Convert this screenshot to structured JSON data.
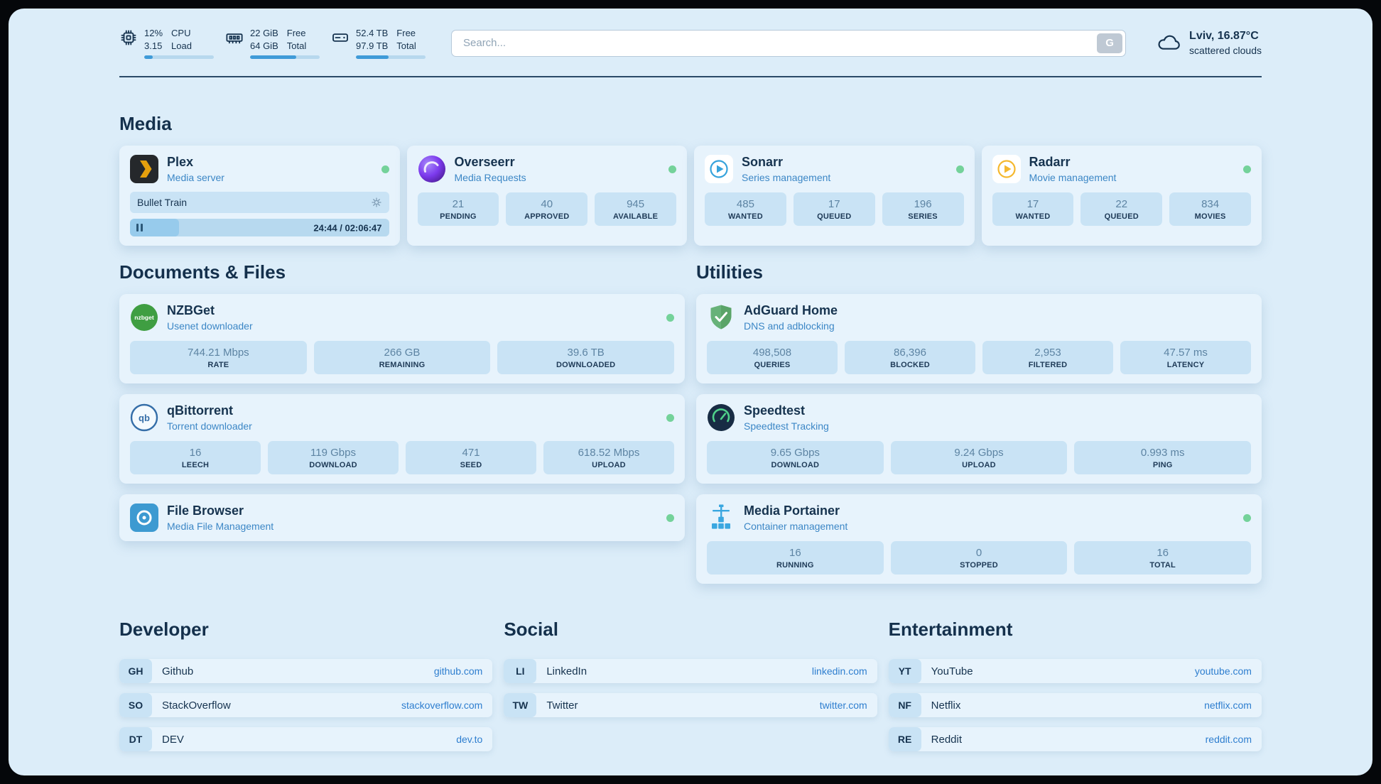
{
  "header": {
    "metrics": [
      {
        "icon": "cpu-icon",
        "values": [
          "12%",
          "3.15"
        ],
        "labels": [
          "CPU",
          "Load"
        ],
        "progress": 12
      },
      {
        "icon": "ram-icon",
        "values": [
          "22 GiB",
          "64 GiB"
        ],
        "labels": [
          "Free",
          "Total"
        ],
        "progress": 66
      },
      {
        "icon": "disk-icon",
        "values": [
          "52.4 TB",
          "97.9 TB"
        ],
        "labels": [
          "Free",
          "Total"
        ],
        "progress": 47
      }
    ],
    "search": {
      "placeholder": "Search...",
      "button_label": "G"
    },
    "weather": {
      "icon": "cloud-icon",
      "location": "Lviv, 16.87°C",
      "condition": "scattered clouds"
    }
  },
  "sections": {
    "media": {
      "title": "Media",
      "plex": {
        "icon": "plex-icon",
        "name": "Plex",
        "subtitle": "Media server",
        "online": true,
        "now_playing": "Bullet Train",
        "elapsed_total": "24:44 / 02:06:47",
        "progress": 19
      },
      "overseerr": {
        "icon": "overseerr-icon",
        "name": "Overseerr",
        "subtitle": "Media Requests",
        "online": true,
        "stats": [
          {
            "value": "21",
            "label": "PENDING"
          },
          {
            "value": "40",
            "label": "APPROVED"
          },
          {
            "value": "945",
            "label": "AVAILABLE"
          }
        ]
      },
      "sonarr": {
        "icon": "sonarr-icon",
        "name": "Sonarr",
        "subtitle": "Series management",
        "online": true,
        "stats": [
          {
            "value": "485",
            "label": "WANTED"
          },
          {
            "value": "17",
            "label": "QUEUED"
          },
          {
            "value": "196",
            "label": "SERIES"
          }
        ]
      },
      "radarr": {
        "icon": "radarr-icon",
        "name": "Radarr",
        "subtitle": "Movie management",
        "online": true,
        "stats": [
          {
            "value": "17",
            "label": "WANTED"
          },
          {
            "value": "22",
            "label": "QUEUED"
          },
          {
            "value": "834",
            "label": "MOVIES"
          }
        ]
      }
    },
    "documents": {
      "title": "Documents & Files",
      "nzbget": {
        "icon": "nzbget-icon",
        "name": "NZBGet",
        "subtitle": "Usenet downloader",
        "online": true,
        "stats": [
          {
            "value": "744.21 Mbps",
            "label": "RATE"
          },
          {
            "value": "266 GB",
            "label": "REMAINING"
          },
          {
            "value": "39.6 TB",
            "label": "DOWNLOADED"
          }
        ]
      },
      "qbittorrent": {
        "icon": "qbittorrent-icon",
        "name": "qBittorrent",
        "subtitle": "Torrent downloader",
        "online": true,
        "stats": [
          {
            "value": "16",
            "label": "LEECH"
          },
          {
            "value": "119 Gbps",
            "label": "DOWNLOAD"
          },
          {
            "value": "471",
            "label": "SEED"
          },
          {
            "value": "618.52 Mbps",
            "label": "UPLOAD"
          }
        ]
      },
      "filebrowser": {
        "icon": "filebrowser-icon",
        "name": "File Browser",
        "subtitle": "Media File Management",
        "online": true
      }
    },
    "utilities": {
      "title": "Utilities",
      "adguard": {
        "icon": "adguard-icon",
        "name": "AdGuard Home",
        "subtitle": "DNS and adblocking",
        "stats": [
          {
            "value": "498,508",
            "label": "QUERIES"
          },
          {
            "value": "86,396",
            "label": "BLOCKED"
          },
          {
            "value": "2,953",
            "label": "FILTERED"
          },
          {
            "value": "47.57 ms",
            "label": "LATENCY"
          }
        ]
      },
      "speedtest": {
        "icon": "speedtest-icon",
        "name": "Speedtest",
        "subtitle": "Speedtest Tracking",
        "stats": [
          {
            "value": "9.65 Gbps",
            "label": "DOWNLOAD"
          },
          {
            "value": "9.24 Gbps",
            "label": "UPLOAD"
          },
          {
            "value": "0.993 ms",
            "label": "PING"
          }
        ]
      },
      "portainer": {
        "icon": "portainer-icon",
        "name": "Media Portainer",
        "subtitle": "Container management",
        "online": true,
        "stats": [
          {
            "value": "16",
            "label": "RUNNING"
          },
          {
            "value": "0",
            "label": "STOPPED"
          },
          {
            "value": "16",
            "label": "TOTAL"
          }
        ]
      }
    },
    "links": {
      "developer": {
        "title": "Developer",
        "items": [
          {
            "abbr": "GH",
            "name": "Github",
            "url": "github.com"
          },
          {
            "abbr": "SO",
            "name": "StackOverflow",
            "url": "stackoverflow.com"
          },
          {
            "abbr": "DT",
            "name": "DEV",
            "url": "dev.to"
          }
        ]
      },
      "social": {
        "title": "Social",
        "items": [
          {
            "abbr": "LI",
            "name": "LinkedIn",
            "url": "linkedin.com"
          },
          {
            "abbr": "TW",
            "name": "Twitter",
            "url": "twitter.com"
          }
        ]
      },
      "entertainment": {
        "title": "Entertainment",
        "items": [
          {
            "abbr": "YT",
            "name": "YouTube",
            "url": "youtube.com"
          },
          {
            "abbr": "NF",
            "name": "Netflix",
            "url": "netflix.com"
          },
          {
            "abbr": "RE",
            "name": "Reddit",
            "url": "reddit.com"
          }
        ]
      }
    }
  },
  "colors": {
    "background": "#dcedf9",
    "card": "#e7f3fc",
    "stat_box": "#c9e3f5",
    "text_dark": "#16334f",
    "accent": "#3c87c6",
    "link": "#2e7ecf",
    "status_online": "#74d29a",
    "progress_fill": "#3f9bd8"
  }
}
